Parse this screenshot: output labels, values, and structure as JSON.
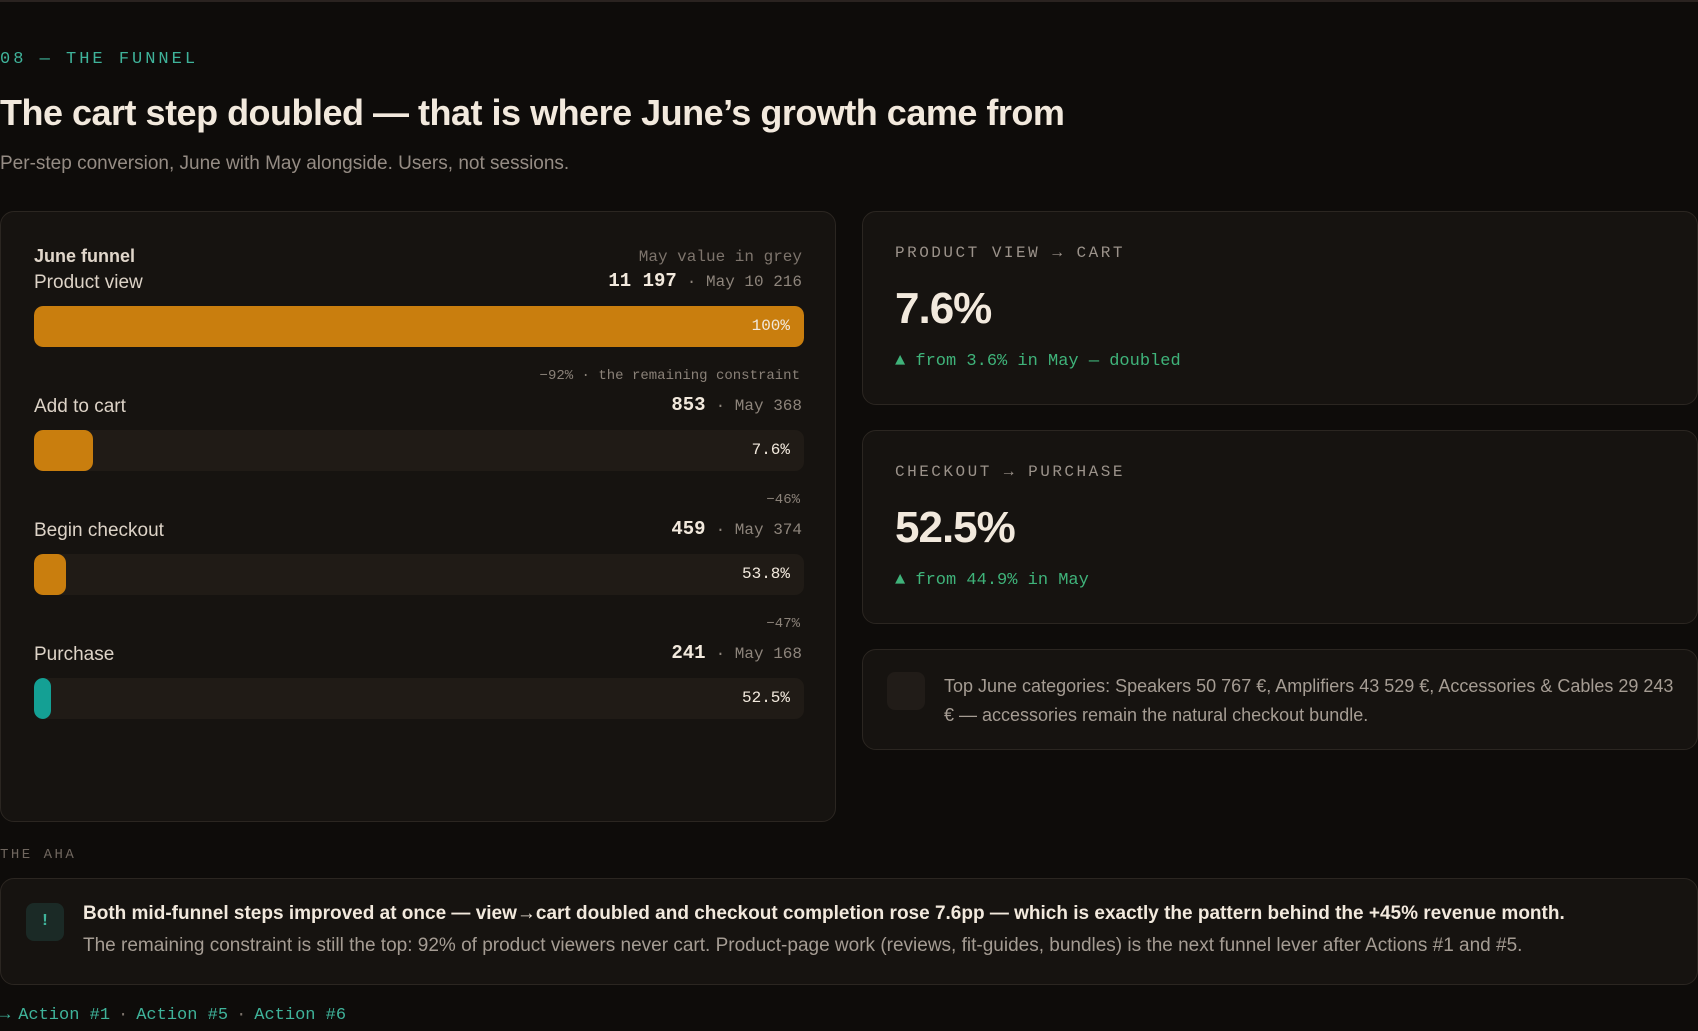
{
  "eyebrow": "08 — THE FUNNEL",
  "title": "The cart step doubled — that is where June’s growth came from",
  "subtitle": "Per-step conversion, June with May alongside. Users, not sessions.",
  "funnel": {
    "title": "June funnel",
    "note": "May value in grey",
    "steps": [
      {
        "label": "Product view",
        "value": 11197,
        "value_label": "11 197",
        "may_label": "· May 10 216",
        "rate_label": "100%",
        "color": "#c97e0e"
      },
      {
        "label": "Add to cart",
        "value": 853,
        "value_label": "853",
        "may_label": "· May 368",
        "rate_label": "7.6%",
        "color": "#c97e0e"
      },
      {
        "label": "Begin checkout",
        "value": 459,
        "value_label": "459",
        "may_label": "· May 374",
        "rate_label": "53.8%",
        "color": "#c97e0e"
      },
      {
        "label": "Purchase",
        "value": 241,
        "value_label": "241",
        "may_label": "· May 168",
        "rate_label": "52.5%",
        "color": "#14a094"
      }
    ],
    "drops": [
      "−92% · the remaining constraint",
      "−46%",
      "−47%"
    ]
  },
  "cards": [
    {
      "label": "PRODUCT VIEW → CART",
      "value": "7.6%",
      "delta": "▲ from 3.6% in May — doubled"
    },
    {
      "label": "CHECKOUT → PURCHASE",
      "value": "52.5%",
      "delta": "▲ from 44.9% in May"
    }
  ],
  "note": "Top June categories: Speakers 50 767 €, Amplifiers 43 529 €, Accessories & Cables 29 243 € — accessories remain the natural checkout bundle.",
  "aha": {
    "label": "THE AHA",
    "icon": "!",
    "headline": "Both mid-funnel steps improved at once — view→cart doubled and checkout completion rose 7.6pp — which is exactly the pattern behind the +45% revenue month.",
    "body": "The remaining constraint is still the top: 92% of product viewers never cart. Product-page work (reviews, fit-guides, bundles) is the next funnel lever after Actions #1 and #5."
  },
  "footer": {
    "prefix": "→",
    "separator": "·",
    "links": [
      "Action #1",
      "Action #5",
      "Action #6"
    ]
  }
}
